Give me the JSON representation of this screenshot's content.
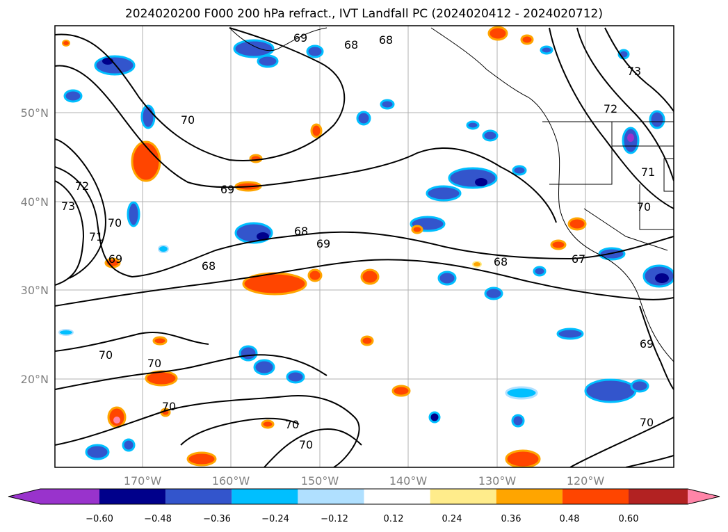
{
  "title": "2024020200 F000 200 hPa refract., IVT Landfall PC (2024020412 - 2024020712)",
  "map": {
    "lon_ticks": [
      "170°W",
      "160°W",
      "150°W",
      "140°W",
      "130°W",
      "120°W"
    ],
    "lat_ticks": [
      "50°N",
      "40°N",
      "30°N",
      "20°N"
    ],
    "contour_labels": [
      "69",
      "68",
      "68",
      "70",
      "69",
      "72",
      "73",
      "70",
      "71",
      "69",
      "68",
      "69",
      "68",
      "68",
      "67",
      "70",
      "70",
      "70",
      "70",
      "70",
      "72",
      "73",
      "71",
      "70",
      "69",
      "70"
    ],
    "grid": true
  },
  "colorbar": {
    "tick_labels": [
      "−0.60",
      "−0.48",
      "−0.36",
      "−0.24",
      "−0.12",
      "0.12",
      "0.24",
      "0.36",
      "0.48",
      "0.60"
    ],
    "colors": [
      "#9933cc",
      "#00008b",
      "#3355cc",
      "#00bfff",
      "#b0e0ff",
      "#ffffff",
      "#ffec8b",
      "#ffa500",
      "#ff4500",
      "#b22222",
      "#ff85a8"
    ],
    "extend": "both"
  }
}
